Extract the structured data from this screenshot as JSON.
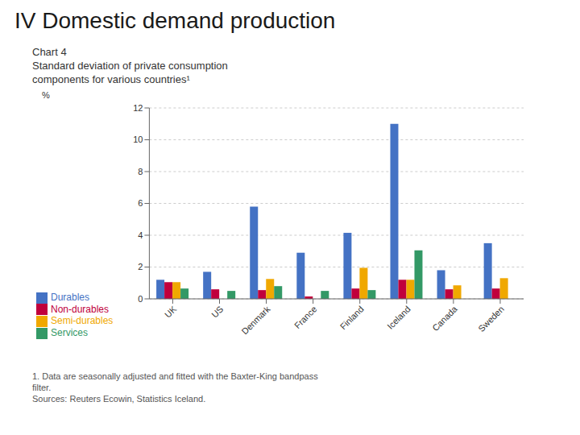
{
  "chart_data": {
    "type": "bar",
    "title": "IV Domestic demand production",
    "subtitle": [
      "Chart 4",
      "Standard deviation of private consumption",
      "components for various countries¹"
    ],
    "y_label": "%",
    "categories": [
      "UK",
      "US",
      "Denmark",
      "France",
      "Finland",
      "Iceland",
      "Canada",
      "Sweden"
    ],
    "series": [
      {
        "name": "Durables",
        "color": "#4472c4",
        "values": [
          1.2,
          1.7,
          5.8,
          2.9,
          4.15,
          11.0,
          1.8,
          3.5
        ]
      },
      {
        "name": "Non-durables",
        "color": "#c0003c",
        "values": [
          1.05,
          0.6,
          0.55,
          0.15,
          0.65,
          1.2,
          0.6,
          0.65
        ]
      },
      {
        "name": "Semi-durables",
        "color": "#f0a800",
        "values": [
          1.05,
          0.0,
          1.25,
          0.0,
          1.95,
          1.2,
          0.85,
          1.3
        ]
      },
      {
        "name": "Services",
        "color": "#339966",
        "values": [
          0.65,
          0.5,
          0.8,
          0.5,
          0.55,
          3.05,
          0.0,
          0.0
        ]
      }
    ],
    "ylim": [
      0,
      12
    ],
    "yticks": [
      0,
      2,
      4,
      6,
      8,
      10,
      12
    ],
    "grid": true,
    "legend": "bottom",
    "annotations": [
      "1. Data are seasonally adjusted and fitted with the Baxter-King bandpass",
      "filter.",
      "Sources: Reuters Ecowin, Statistics Iceland."
    ]
  }
}
